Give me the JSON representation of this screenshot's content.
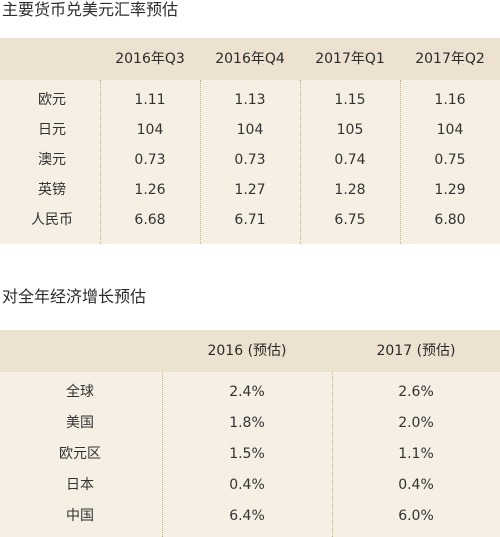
{
  "fx_table": {
    "title": "主要货币兑美元汇率预估",
    "columns": [
      "2016年Q3",
      "2016年Q4",
      "2017年Q1",
      "2017年Q2"
    ],
    "rows": [
      {
        "label": "欧元",
        "values": [
          "1.11",
          "1.13",
          "1.15",
          "1.16"
        ]
      },
      {
        "label": "日元",
        "values": [
          "104",
          "104",
          "105",
          "104"
        ]
      },
      {
        "label": "澳元",
        "values": [
          "0.73",
          "0.73",
          "0.74",
          "0.75"
        ]
      },
      {
        "label": "英镑",
        "values": [
          "1.26",
          "1.27",
          "1.28",
          "1.29"
        ]
      },
      {
        "label": "人民币",
        "values": [
          "6.68",
          "6.71",
          "6.75",
          "6.80"
        ]
      }
    ]
  },
  "growth_table": {
    "title": "对全年经济增长预估",
    "columns": [
      "2016 (预估)",
      "2017 (预估)"
    ],
    "rows": [
      {
        "label": "全球",
        "values": [
          "2.4%",
          "2.6%"
        ]
      },
      {
        "label": "美国",
        "values": [
          "1.8%",
          "2.0%"
        ]
      },
      {
        "label": "欧元区",
        "values": [
          "1.5%",
          "1.1%"
        ]
      },
      {
        "label": "日本",
        "values": [
          "0.4%",
          "0.4%"
        ]
      },
      {
        "label": "中国",
        "values": [
          "6.4%",
          "6.0%"
        ]
      }
    ]
  },
  "colors": {
    "header_bg": "#ede2cf",
    "body_bg": "#f6f0e4",
    "divider": "#c6ac80",
    "text": "#333333"
  }
}
